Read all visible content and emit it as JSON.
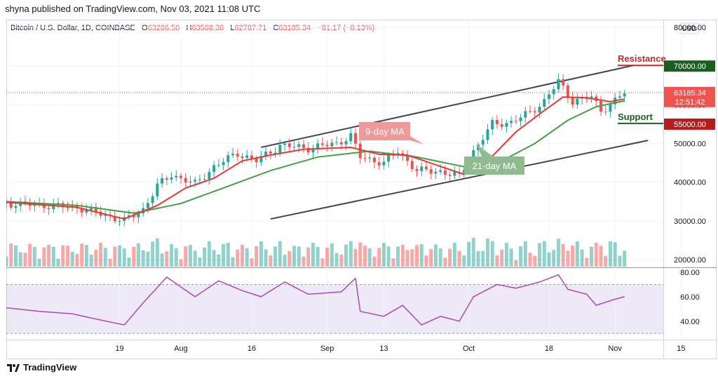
{
  "header": {
    "published": "shyna published on TradingView.com, Nov 03, 2021 11:08 UTC"
  },
  "legend": {
    "symbol": "Bitcoin / U.S. Dollar, 1D, COINBASE",
    "open_label": "O",
    "open": "63266.50",
    "high_label": "H",
    "high": "63568.36",
    "low_label": "L",
    "low": "62787.71",
    "close_label": "C",
    "close": "63185.34",
    "change": "−81.17 (−0.13%)"
  },
  "currency": "USD",
  "price_badge": {
    "price": "63185.34",
    "countdown": "12:51:42"
  },
  "annotations": {
    "resistance": "Resistance",
    "support": "Support",
    "ma9": "9-day MA",
    "ma21": "21-day MA",
    "resistance_level": "70000.00",
    "support_level": "55000.00"
  },
  "footer": {
    "brand": "TradingView"
  },
  "colors": {
    "up": "#26a69a",
    "down": "#ef5350",
    "ma9": "#e53935",
    "ma21": "#43a047",
    "rsi": "#ab47bc",
    "resistance": "#c62828",
    "support_badge": "#b71c1c",
    "resistance_badge": "#1b5e20"
  },
  "chart_data": {
    "type": "candlestick",
    "price_axis": {
      "ylim": [
        18000,
        82000
      ],
      "ticks": [
        "80000.00",
        "70000.00",
        "60000.00",
        "50000.00",
        "40000.00",
        "30000.00",
        "20000.00"
      ]
    },
    "rsi_axis": {
      "ylim": [
        25,
        84
      ],
      "ticks": [
        "80.00",
        "60.00",
        "40.00"
      ],
      "band": [
        30,
        70
      ]
    },
    "x_ticks": [
      {
        "label": "19",
        "date": "2021-07-19"
      },
      {
        "label": "Aug",
        "date": "2021-08-01"
      },
      {
        "label": "16",
        "date": "2021-08-16"
      },
      {
        "label": "Sep",
        "date": "2021-09-01"
      },
      {
        "label": "13",
        "date": "2021-09-13"
      },
      {
        "label": "Oct",
        "date": "2021-10-01"
      },
      {
        "label": "18",
        "date": "2021-10-18"
      },
      {
        "label": "Nov",
        "date": "2021-11-01"
      },
      {
        "label": "15",
        "date": "2021-11-15"
      }
    ],
    "trend_lines": [
      {
        "name": "upper channel",
        "points": [
          [
            "2021-08-18",
            49000
          ],
          [
            "2021-11-05",
            70200
          ]
        ]
      },
      {
        "name": "lower channel",
        "points": [
          [
            "2021-08-20",
            30500
          ],
          [
            "2021-11-08",
            50800
          ]
        ]
      }
    ],
    "close": [
      {
        "date": "2021-06-25",
        "value": 34500
      },
      {
        "date": "2021-07-03",
        "value": 34000
      },
      {
        "date": "2021-07-10",
        "value": 33500
      },
      {
        "date": "2021-07-16",
        "value": 31500
      },
      {
        "date": "2021-07-20",
        "value": 30000
      },
      {
        "date": "2021-07-24",
        "value": 33000
      },
      {
        "date": "2021-07-27",
        "value": 39000
      },
      {
        "date": "2021-07-30",
        "value": 42000
      },
      {
        "date": "2021-08-04",
        "value": 39500
      },
      {
        "date": "2021-08-08",
        "value": 44000
      },
      {
        "date": "2021-08-13",
        "value": 47500
      },
      {
        "date": "2021-08-17",
        "value": 45500
      },
      {
        "date": "2021-08-22",
        "value": 49500
      },
      {
        "date": "2021-08-28",
        "value": 48800
      },
      {
        "date": "2021-09-03",
        "value": 50000
      },
      {
        "date": "2021-09-06",
        "value": 52000
      },
      {
        "date": "2021-09-08",
        "value": 46500
      },
      {
        "date": "2021-09-13",
        "value": 45000
      },
      {
        "date": "2021-09-16",
        "value": 48000
      },
      {
        "date": "2021-09-20",
        "value": 43000
      },
      {
        "date": "2021-09-25",
        "value": 42800
      },
      {
        "date": "2021-09-29",
        "value": 41500
      },
      {
        "date": "2021-10-02",
        "value": 48000
      },
      {
        "date": "2021-10-06",
        "value": 55000
      },
      {
        "date": "2021-10-10",
        "value": 55500
      },
      {
        "date": "2021-10-14",
        "value": 58000
      },
      {
        "date": "2021-10-17",
        "value": 61000
      },
      {
        "date": "2021-10-20",
        "value": 66000
      },
      {
        "date": "2021-10-23",
        "value": 61000
      },
      {
        "date": "2021-10-27",
        "value": 62000
      },
      {
        "date": "2021-10-29",
        "value": 58500
      },
      {
        "date": "2021-11-01",
        "value": 61000
      },
      {
        "date": "2021-11-03",
        "value": 63185
      }
    ],
    "ma9": [
      {
        "date": "2021-06-25",
        "value": 34800
      },
      {
        "date": "2021-07-10",
        "value": 33500
      },
      {
        "date": "2021-07-20",
        "value": 30500
      },
      {
        "date": "2021-07-27",
        "value": 34000
      },
      {
        "date": "2021-08-02",
        "value": 38500
      },
      {
        "date": "2021-08-08",
        "value": 41000
      },
      {
        "date": "2021-08-14",
        "value": 45500
      },
      {
        "date": "2021-08-20",
        "value": 47000
      },
      {
        "date": "2021-08-27",
        "value": 48500
      },
      {
        "date": "2021-09-06",
        "value": 49000
      },
      {
        "date": "2021-09-12",
        "value": 47200
      },
      {
        "date": "2021-09-18",
        "value": 47000
      },
      {
        "date": "2021-09-24",
        "value": 44500
      },
      {
        "date": "2021-09-30",
        "value": 42000
      },
      {
        "date": "2021-10-05",
        "value": 45500
      },
      {
        "date": "2021-10-11",
        "value": 53000
      },
      {
        "date": "2021-10-17",
        "value": 58500
      },
      {
        "date": "2021-10-21",
        "value": 62000
      },
      {
        "date": "2021-10-26",
        "value": 61800
      },
      {
        "date": "2021-10-31",
        "value": 60800
      },
      {
        "date": "2021-11-03",
        "value": 61500
      }
    ],
    "ma21": [
      {
        "date": "2021-06-25",
        "value": 35000
      },
      {
        "date": "2021-07-10",
        "value": 34000
      },
      {
        "date": "2021-07-22",
        "value": 32000
      },
      {
        "date": "2021-08-01",
        "value": 34500
      },
      {
        "date": "2021-08-10",
        "value": 38500
      },
      {
        "date": "2021-08-20",
        "value": 43000
      },
      {
        "date": "2021-08-30",
        "value": 46500
      },
      {
        "date": "2021-09-10",
        "value": 48000
      },
      {
        "date": "2021-09-20",
        "value": 46500
      },
      {
        "date": "2021-09-30",
        "value": 44000
      },
      {
        "date": "2021-10-08",
        "value": 45500
      },
      {
        "date": "2021-10-15",
        "value": 50000
      },
      {
        "date": "2021-10-22",
        "value": 56000
      },
      {
        "date": "2021-10-28",
        "value": 59500
      },
      {
        "date": "2021-11-03",
        "value": 61000
      }
    ],
    "rsi": [
      {
        "date": "2021-06-25",
        "value": 51
      },
      {
        "date": "2021-07-02",
        "value": 48
      },
      {
        "date": "2021-07-09",
        "value": 46
      },
      {
        "date": "2021-07-15",
        "value": 41
      },
      {
        "date": "2021-07-20",
        "value": 37
      },
      {
        "date": "2021-07-24",
        "value": 55
      },
      {
        "date": "2021-07-29",
        "value": 76
      },
      {
        "date": "2021-08-04",
        "value": 60
      },
      {
        "date": "2021-08-09",
        "value": 73
      },
      {
        "date": "2021-08-14",
        "value": 65
      },
      {
        "date": "2021-08-18",
        "value": 60
      },
      {
        "date": "2021-08-23",
        "value": 72
      },
      {
        "date": "2021-08-28",
        "value": 62
      },
      {
        "date": "2021-09-04",
        "value": 64
      },
      {
        "date": "2021-09-07",
        "value": 75
      },
      {
        "date": "2021-09-08",
        "value": 48
      },
      {
        "date": "2021-09-13",
        "value": 44
      },
      {
        "date": "2021-09-17",
        "value": 53
      },
      {
        "date": "2021-09-21",
        "value": 37
      },
      {
        "date": "2021-09-25",
        "value": 44
      },
      {
        "date": "2021-09-29",
        "value": 40
      },
      {
        "date": "2021-10-02",
        "value": 60
      },
      {
        "date": "2021-10-07",
        "value": 70
      },
      {
        "date": "2021-10-11",
        "value": 67
      },
      {
        "date": "2021-10-16",
        "value": 72
      },
      {
        "date": "2021-10-20",
        "value": 78
      },
      {
        "date": "2021-10-22",
        "value": 66
      },
      {
        "date": "2021-10-26",
        "value": 62
      },
      {
        "date": "2021-10-28",
        "value": 53
      },
      {
        "date": "2021-11-01",
        "value": 58
      },
      {
        "date": "2021-11-03",
        "value": 60
      }
    ]
  }
}
